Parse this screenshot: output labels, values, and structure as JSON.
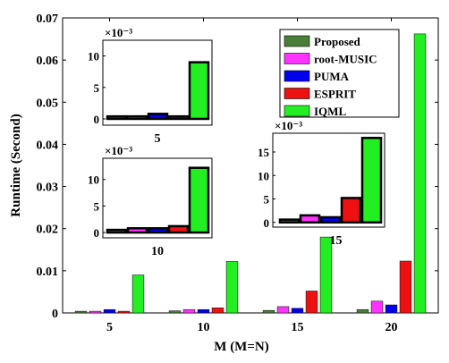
{
  "chart_data": {
    "type": "bar",
    "xlabel": "M (M=N)",
    "ylabel": "Runtime (Second)",
    "categories": [
      "5",
      "10",
      "15",
      "20"
    ],
    "ylim": [
      0,
      0.07
    ],
    "yticks": [
      "0",
      "0.01",
      "0.02",
      "0.03",
      "0.04",
      "0.05",
      "0.06",
      "0.07"
    ],
    "grid": false,
    "legend_position": "top-right",
    "series": [
      {
        "name": "Proposed",
        "color": "#4a7f3a",
        "values": [
          0.0004,
          0.0005,
          0.0006,
          0.0008
        ]
      },
      {
        "name": "root-MUSIC",
        "color": "#ff33ff",
        "values": [
          0.0004,
          0.0008,
          0.0015,
          0.0028
        ]
      },
      {
        "name": "PUMA",
        "color": "#0000ee",
        "values": [
          0.0008,
          0.0008,
          0.0011,
          0.0019
        ]
      },
      {
        "name": "ESPRIT",
        "color": "#ee1111",
        "values": [
          0.0004,
          0.0012,
          0.0052,
          0.0123
        ]
      },
      {
        "name": "IQML",
        "color": "#22ee22",
        "values": [
          0.009,
          0.0122,
          0.018,
          0.0662
        ]
      }
    ],
    "insets": [
      {
        "category": "5",
        "exponent": "×10⁻³",
        "ylim": [
          -1,
          12.5
        ],
        "yticks": [
          "0",
          "5",
          "10"
        ],
        "values": [
          0.4,
          0.4,
          0.8,
          0.4,
          9.0
        ]
      },
      {
        "category": "10",
        "exponent": "×10⁻³",
        "ylim": [
          -1,
          14
        ],
        "yticks": [
          "0",
          "5",
          "10"
        ],
        "values": [
          0.5,
          0.8,
          0.8,
          1.2,
          12.2
        ]
      },
      {
        "category": "15",
        "exponent": "×10⁻³",
        "ylim": [
          -1,
          19
        ],
        "yticks": [
          "0",
          "5",
          "10",
          "15"
        ],
        "values": [
          0.6,
          1.5,
          1.1,
          5.2,
          18.0
        ]
      }
    ]
  }
}
